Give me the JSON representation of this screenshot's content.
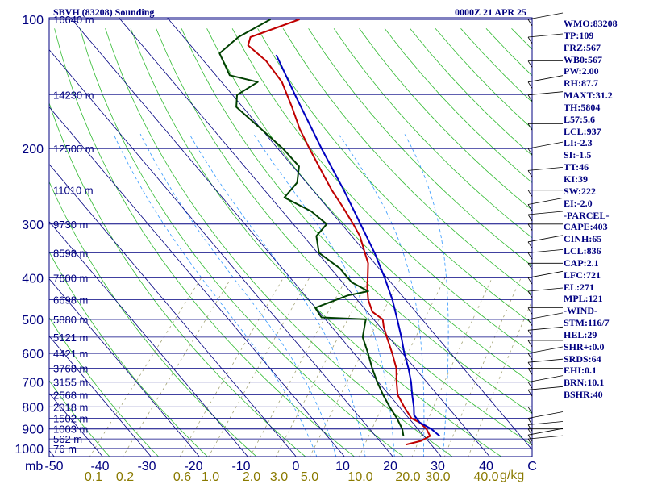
{
  "header": {
    "station": "SBVH (83208) Sounding",
    "time": "0000Z 21 APR 25"
  },
  "axes": {
    "pressure_unit": "mb",
    "mixing_ratio_unit": "g/kg",
    "pressure_ticks": [
      "100",
      "200",
      "300",
      "400",
      "500",
      "600",
      "700",
      "800",
      "900",
      "1000"
    ],
    "temperature_ticks": [
      "-50",
      "-40",
      "-30",
      "-20",
      "-10",
      "0",
      "10",
      "20",
      "30",
      "40",
      "C"
    ],
    "mixing_ratio_ticks": [
      "0.1",
      "0.2",
      "0.6",
      "1.0",
      "2.0",
      "3.0",
      "5.0",
      "10.0",
      "20.0",
      "30.0",
      "40.0"
    ],
    "heights": [
      {
        "p": 100,
        "label": "16640 m"
      },
      {
        "p": 150,
        "label": "14230 m"
      },
      {
        "p": 200,
        "label": "12500 m"
      },
      {
        "p": 250,
        "label": "11010 m"
      },
      {
        "p": 300,
        "label": "9730 m"
      },
      {
        "p": 350,
        "label": "8598 m"
      },
      {
        "p": 400,
        "label": "7600 m"
      },
      {
        "p": 450,
        "label": "6698 m"
      },
      {
        "p": 500,
        "label": "5880 m"
      },
      {
        "p": 550,
        "label": "5121 m"
      },
      {
        "p": 600,
        "label": "4421 m"
      },
      {
        "p": 650,
        "label": "3768 m"
      },
      {
        "p": 700,
        "label": "3155 m"
      },
      {
        "p": 750,
        "label": "2568 m"
      },
      {
        "p": 800,
        "label": "2018 m"
      },
      {
        "p": 850,
        "label": "1502 m"
      },
      {
        "p": 900,
        "label": "1003 m"
      },
      {
        "p": 950,
        "label": "562 m"
      },
      {
        "p": 1000,
        "label": "76 m"
      }
    ]
  },
  "indices": [
    "WMO:83208",
    "TP:109",
    "FRZ:567",
    "WB0:567",
    "PW:2.00",
    "RH:87.7",
    "MAXT:31.2",
    "TH:5804",
    "L57:5.6",
    "LCL:937",
    "LI:-2.3",
    "SI:-1.5",
    "TT:46",
    "KI:39",
    "SW:222",
    "EI:-2.0",
    "-PARCEL-",
    "CAPE:403",
    "CINH:65",
    "LCL:836",
    "CAP:2.1",
    "LFC:721",
    "EL:271",
    "MPL:121",
    "-WIND-",
    "STM:116/7",
    "HEL:29",
    "SHR+:0.0",
    "SRDS:64",
    "EHI:0.1",
    "BRN:10.1",
    "BSHR:40"
  ],
  "chart_data": {
    "type": "line",
    "title": "SBVH (83208) Sounding",
    "subtitle": "0000Z 21 APR 25",
    "xlabel": "",
    "ylabel": "",
    "x_unit": "C",
    "y_unit": "mb",
    "ylim": [
      1000,
      100
    ],
    "xlim": [
      -50,
      50
    ],
    "y_scale": "log",
    "skew": "skew-T",
    "grid": true,
    "series": [
      {
        "color": "#c00000",
        "role": "temperature",
        "points": [
          {
            "p": 980,
            "t": 22.0
          },
          {
            "p": 960,
            "t": 24.5
          },
          {
            "p": 935,
            "t": 25.5
          },
          {
            "p": 900,
            "t": 23.5
          },
          {
            "p": 870,
            "t": 21.0
          },
          {
            "p": 850,
            "t": 18.5
          },
          {
            "p": 800,
            "t": 15.0
          },
          {
            "p": 750,
            "t": 11.5
          },
          {
            "p": 700,
            "t": 9.0
          },
          {
            "p": 650,
            "t": 6.5
          },
          {
            "p": 600,
            "t": 3.0
          },
          {
            "p": 550,
            "t": -1.0
          },
          {
            "p": 520,
            "t": -3.5
          },
          {
            "p": 500,
            "t": -5.0
          },
          {
            "p": 480,
            "t": -8.5
          },
          {
            "p": 450,
            "t": -11.5
          },
          {
            "p": 420,
            "t": -14.0
          },
          {
            "p": 400,
            "t": -15.5
          },
          {
            "p": 370,
            "t": -18.0
          },
          {
            "p": 350,
            "t": -20.5
          },
          {
            "p": 320,
            "t": -24.5
          },
          {
            "p": 300,
            "t": -28.0
          },
          {
            "p": 270,
            "t": -34.0
          },
          {
            "p": 250,
            "t": -38.5
          },
          {
            "p": 230,
            "t": -43.0
          },
          {
            "p": 200,
            "t": -50.5
          },
          {
            "p": 180,
            "t": -56.0
          },
          {
            "p": 160,
            "t": -61.5
          },
          {
            "p": 140,
            "t": -68.0
          },
          {
            "p": 125,
            "t": -75.0
          },
          {
            "p": 115,
            "t": -81.5
          },
          {
            "p": 110,
            "t": -82.5
          },
          {
            "p": 100,
            "t": -75.5
          }
        ]
      },
      {
        "color": "#004000",
        "role": "dewpoint",
        "points": [
          {
            "p": 935,
            "t": 20.0
          },
          {
            "p": 900,
            "t": 18.5
          },
          {
            "p": 850,
            "t": 15.5
          },
          {
            "p": 800,
            "t": 12.0
          },
          {
            "p": 750,
            "t": 8.5
          },
          {
            "p": 700,
            "t": 5.0
          },
          {
            "p": 650,
            "t": 1.5
          },
          {
            "p": 600,
            "t": -2.0
          },
          {
            "p": 550,
            "t": -6.0
          },
          {
            "p": 500,
            "t": -8.5
          },
          {
            "p": 495,
            "t": -18.0
          },
          {
            "p": 470,
            "t": -21.0
          },
          {
            "p": 440,
            "t": -16.5
          },
          {
            "p": 430,
            "t": -13.0
          },
          {
            "p": 410,
            "t": -18.0
          },
          {
            "p": 380,
            "t": -23.0
          },
          {
            "p": 350,
            "t": -30.0
          },
          {
            "p": 320,
            "t": -33.5
          },
          {
            "p": 300,
            "t": -33.5
          },
          {
            "p": 280,
            "t": -39.0
          },
          {
            "p": 260,
            "t": -47.0
          },
          {
            "p": 240,
            "t": -47.0
          },
          {
            "p": 220,
            "t": -49.5
          },
          {
            "p": 200,
            "t": -56.0
          },
          {
            "p": 180,
            "t": -64.0
          },
          {
            "p": 160,
            "t": -73.0
          },
          {
            "p": 150,
            "t": -75.0
          },
          {
            "p": 140,
            "t": -73.0
          },
          {
            "p": 135,
            "t": -80.0
          },
          {
            "p": 120,
            "t": -86.0
          },
          {
            "p": 110,
            "t": -85.0
          },
          {
            "p": 100,
            "t": -81.5
          }
        ]
      },
      {
        "color": "#0000c0",
        "role": "parcel",
        "points": [
          {
            "p": 935,
            "t": 27.5
          },
          {
            "p": 900,
            "t": 24.5
          },
          {
            "p": 870,
            "t": 21.0
          },
          {
            "p": 836,
            "t": 18.5
          },
          {
            "p": 800,
            "t": 17.0
          },
          {
            "p": 750,
            "t": 14.5
          },
          {
            "p": 700,
            "t": 12.0
          },
          {
            "p": 650,
            "t": 9.0
          },
          {
            "p": 600,
            "t": 5.5
          },
          {
            "p": 550,
            "t": 2.0
          },
          {
            "p": 500,
            "t": -2.0
          },
          {
            "p": 450,
            "t": -6.5
          },
          {
            "p": 400,
            "t": -12.0
          },
          {
            "p": 350,
            "t": -18.5
          },
          {
            "p": 300,
            "t": -26.5
          },
          {
            "p": 250,
            "t": -36.0
          },
          {
            "p": 200,
            "t": -48.0
          },
          {
            "p": 150,
            "t": -63.0
          },
          {
            "p": 121,
            "t": -74.0
          }
        ]
      }
    ]
  }
}
